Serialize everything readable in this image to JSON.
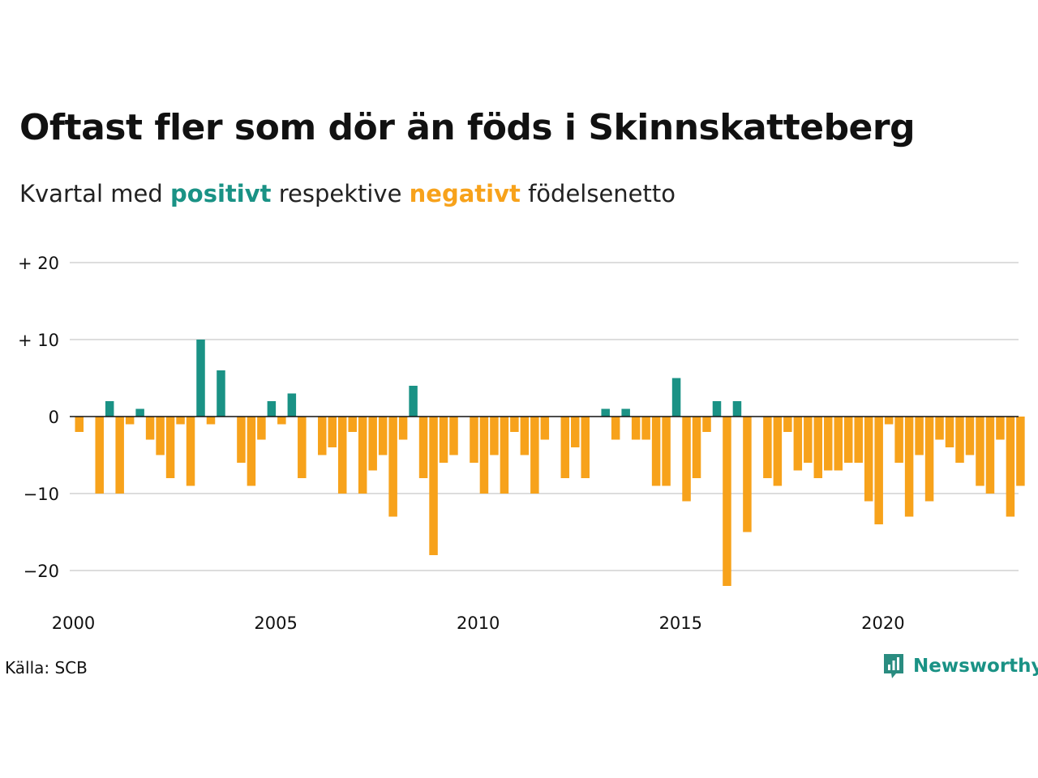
{
  "title": "Oftast fler som dör än föds i Skinnskatteberg",
  "subtitle": {
    "part1": "Kvartal med ",
    "positive_word": "positivt",
    "part2": " respektive ",
    "negative_word": "negativt",
    "part3": " födelsenetto"
  },
  "colors": {
    "positive": "#1a9285",
    "negative": "#f7a21b",
    "grid": "#dddddd",
    "zero_line": "#111111"
  },
  "source": "Källa: SCB",
  "brand": {
    "name": "Newsworthy",
    "icon": "newsworthy-logo-icon"
  },
  "chart_data": {
    "type": "bar",
    "title": "Oftast fler som dör än föds i Skinnskatteberg",
    "subtitle": "Kvartal med positivt respektive negativt födelsenetto",
    "xlabel": "",
    "ylabel": "",
    "ylim": [
      -24,
      20
    ],
    "y_ticks": [
      20,
      10,
      0,
      -10,
      -20
    ],
    "y_tick_labels": [
      "+ 20",
      "+ 10",
      "0",
      "−10",
      "−20"
    ],
    "x_tick_labels": [
      "2000",
      "2005",
      "2010",
      "2015",
      "2020"
    ],
    "x_start_year": 2000,
    "quarters_per_year": 4,
    "grid": true,
    "legend": "none",
    "values": [
      -2,
      0,
      -10,
      2,
      -10,
      -1,
      1,
      -3,
      -5,
      -8,
      -1,
      -9,
      10,
      -1,
      6,
      0,
      -6,
      -9,
      -3,
      2,
      -1,
      3,
      -8,
      0,
      -5,
      -4,
      -10,
      -2,
      -10,
      -7,
      -5,
      -13,
      -3,
      4,
      -8,
      -18,
      -6,
      -5,
      0,
      -6,
      -10,
      -5,
      -10,
      -2,
      -5,
      -10,
      -3,
      0,
      -8,
      -4,
      -8,
      0,
      1,
      -3,
      1,
      -3,
      -3,
      -9,
      -9,
      5,
      -11,
      -8,
      -2,
      2,
      -22,
      2,
      -15,
      0,
      -8,
      -9,
      -2,
      -7,
      -6,
      -8,
      -7,
      -7,
      -6,
      -6,
      -11,
      -14,
      -1,
      -6,
      -13,
      -5,
      -11,
      -3,
      -4,
      -6,
      -5,
      -9,
      -10,
      -3,
      -13,
      -9
    ]
  }
}
